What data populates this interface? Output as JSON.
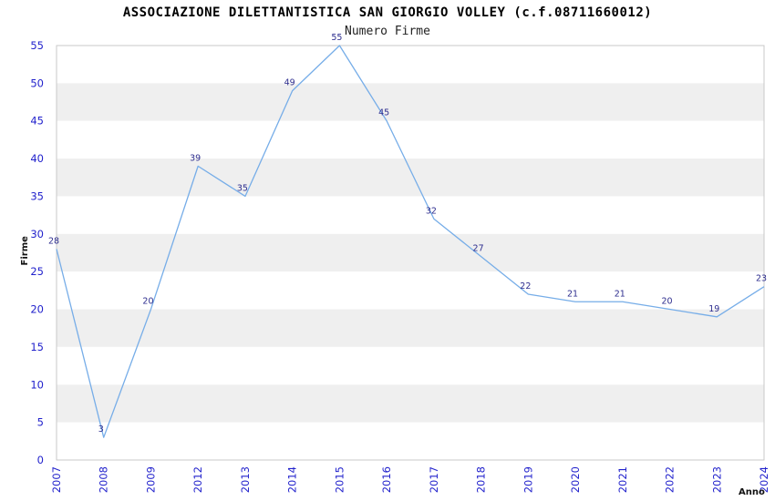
{
  "header": {
    "title": "ASSOCIAZIONE DILETTANTISTICA SAN GIORGIO VOLLEY (c.f.08711660012)",
    "subtitle": "Numero Firme"
  },
  "chart_data": {
    "type": "line",
    "title": "ASSOCIAZIONE DILETTANTISTICA SAN GIORGIO VOLLEY (c.f.08711660012)",
    "subtitle": "Numero Firme",
    "xlabel": "Anno",
    "ylabel": "Firme",
    "categories": [
      "2007",
      "2008",
      "2009",
      "2012",
      "2013",
      "2014",
      "2015",
      "2016",
      "2017",
      "2018",
      "2019",
      "2020",
      "2021",
      "2022",
      "2023",
      "2024"
    ],
    "values": [
      28,
      3,
      20,
      39,
      35,
      49,
      55,
      45,
      32,
      27,
      22,
      21,
      21,
      20,
      19,
      23
    ],
    "point_labels": [
      "28",
      "3",
      "20",
      "39",
      "35",
      "49",
      "55",
      "45",
      "32",
      "27",
      "22",
      "21",
      "21",
      "20",
      "19",
      "23"
    ],
    "ylim": [
      0,
      55
    ],
    "ytick_step": 5,
    "yticks": [
      "0",
      "5",
      "10",
      "15",
      "20",
      "25",
      "30",
      "35",
      "40",
      "45",
      "50",
      "55"
    ],
    "grid": "alternating-horizontal-bands",
    "legend_position": "none",
    "colors": {
      "line": "#76ade8",
      "tick_labels": "#2222cc",
      "point_labels": "#2d2d8e",
      "band_gray": "#efefef",
      "band_white": "#ffffff",
      "plot_border": "#c9c9c9",
      "axis_title": "#111111",
      "title": "#000000",
      "background": "#ffffff"
    }
  }
}
